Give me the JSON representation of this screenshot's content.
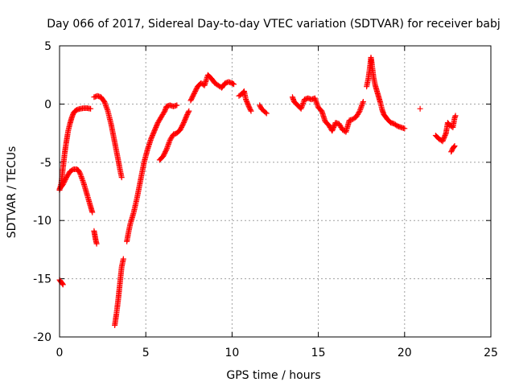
{
  "chart_data": {
    "type": "scatter",
    "title": "Day 066 of 2017, Sidereal Day-to-day VTEC variation (SDTVAR) for receiver babj",
    "xlabel": "GPS time / hours",
    "ylabel": "SDTVAR / TECUs",
    "xlim": [
      0,
      25
    ],
    "ylim": [
      -20,
      5
    ],
    "xticks": [
      0,
      5,
      10,
      15,
      20,
      25
    ],
    "yticks": [
      -20,
      -15,
      -10,
      -5,
      0,
      5
    ],
    "xtick_labels": [
      "0",
      "5",
      "10",
      "15",
      "20",
      "25"
    ],
    "ytick_labels": [
      "-20",
      "-15",
      "-10",
      "-5",
      "0",
      "5"
    ],
    "grid": true,
    "marker": "+",
    "color": "#ff0000",
    "series": [
      {
        "name": "SDTVAR",
        "segments": [
          [
            [
              0.0,
              -7.4
            ],
            [
              0.1,
              -6.8
            ],
            [
              0.2,
              -5.5
            ],
            [
              0.3,
              -4.2
            ],
            [
              0.4,
              -3.2
            ],
            [
              0.5,
              -2.3
            ],
            [
              0.6,
              -1.7
            ],
            [
              0.7,
              -1.2
            ],
            [
              0.8,
              -0.8
            ],
            [
              0.9,
              -0.6
            ],
            [
              1.0,
              -0.5
            ],
            [
              1.2,
              -0.4
            ],
            [
              1.4,
              -0.35
            ],
            [
              1.6,
              -0.35
            ],
            [
              1.8,
              -0.4
            ]
          ],
          [
            [
              0.0,
              -7.3
            ],
            [
              0.2,
              -6.9
            ],
            [
              0.4,
              -6.3
            ],
            [
              0.6,
              -5.8
            ],
            [
              0.8,
              -5.6
            ],
            [
              1.0,
              -5.6
            ],
            [
              1.1,
              -5.7
            ],
            [
              1.2,
              -6.0
            ],
            [
              1.4,
              -6.8
            ],
            [
              1.6,
              -7.8
            ],
            [
              1.8,
              -8.8
            ],
            [
              1.9,
              -9.3
            ]
          ],
          [
            [
              0.0,
              -15.1
            ],
            [
              0.1,
              -15.3
            ],
            [
              0.2,
              -15.5
            ]
          ],
          [
            [
              2.0,
              -10.9
            ],
            [
              2.05,
              -11.3
            ],
            [
              2.1,
              -11.7
            ],
            [
              2.15,
              -12.0
            ]
          ],
          [
            [
              2.0,
              0.6
            ],
            [
              2.2,
              0.7
            ],
            [
              2.4,
              0.6
            ],
            [
              2.6,
              0.2
            ],
            [
              2.8,
              -0.6
            ],
            [
              3.0,
              -1.8
            ],
            [
              3.2,
              -3.3
            ],
            [
              3.4,
              -4.8
            ],
            [
              3.5,
              -5.6
            ],
            [
              3.6,
              -6.3
            ]
          ],
          [
            [
              3.2,
              -19.0
            ],
            [
              3.3,
              -18.0
            ],
            [
              3.4,
              -16.8
            ],
            [
              3.5,
              -15.4
            ],
            [
              3.6,
              -14.0
            ],
            [
              3.7,
              -13.3
            ]
          ],
          [
            [
              3.9,
              -11.8
            ],
            [
              4.0,
              -11.0
            ],
            [
              4.1,
              -10.3
            ],
            [
              4.3,
              -9.3
            ],
            [
              4.5,
              -8.0
            ],
            [
              4.7,
              -6.5
            ],
            [
              4.9,
              -5.0
            ],
            [
              5.1,
              -3.9
            ],
            [
              5.3,
              -3.0
            ],
            [
              5.5,
              -2.3
            ],
            [
              5.7,
              -1.6
            ],
            [
              5.9,
              -1.1
            ],
            [
              6.1,
              -0.6
            ],
            [
              6.2,
              -0.2
            ],
            [
              6.4,
              -0.1
            ],
            [
              6.6,
              -0.2
            ],
            [
              6.8,
              -0.1
            ]
          ],
          [
            [
              5.8,
              -4.8
            ],
            [
              6.0,
              -4.5
            ],
            [
              6.2,
              -3.9
            ],
            [
              6.4,
              -3.1
            ],
            [
              6.6,
              -2.6
            ],
            [
              6.8,
              -2.5
            ],
            [
              7.0,
              -2.2
            ],
            [
              7.2,
              -1.6
            ],
            [
              7.4,
              -0.9
            ],
            [
              7.5,
              -0.6
            ]
          ],
          [
            [
              7.6,
              0.3
            ],
            [
              7.8,
              0.9
            ],
            [
              8.0,
              1.5
            ],
            [
              8.2,
              1.8
            ],
            [
              8.4,
              1.6
            ],
            [
              8.6,
              2.5
            ],
            [
              8.8,
              2.2
            ],
            [
              9.0,
              1.8
            ],
            [
              9.2,
              1.6
            ],
            [
              9.4,
              1.4
            ],
            [
              9.6,
              1.8
            ],
            [
              9.8,
              1.9
            ],
            [
              10.0,
              1.8
            ],
            [
              10.1,
              1.7
            ]
          ],
          [
            [
              10.4,
              0.7
            ],
            [
              10.6,
              0.9
            ],
            [
              10.7,
              1.1
            ],
            [
              10.8,
              0.4
            ],
            [
              11.0,
              -0.3
            ],
            [
              11.1,
              -0.6
            ]
          ],
          [
            [
              11.6,
              -0.1
            ],
            [
              11.7,
              -0.4
            ],
            [
              12.0,
              -0.8
            ]
          ],
          [
            [
              13.5,
              0.6
            ],
            [
              13.6,
              0.2
            ],
            [
              13.8,
              -0.1
            ],
            [
              14.0,
              -0.4
            ],
            [
              14.2,
              0.4
            ],
            [
              14.4,
              0.5
            ],
            [
              14.6,
              0.4
            ],
            [
              14.8,
              0.5
            ],
            [
              15.0,
              -0.3
            ],
            [
              15.2,
              -0.6
            ],
            [
              15.4,
              -1.5
            ],
            [
              15.6,
              -1.8
            ],
            [
              15.8,
              -2.3
            ],
            [
              16.0,
              -1.6
            ],
            [
              16.2,
              -1.7
            ],
            [
              16.4,
              -2.2
            ],
            [
              16.6,
              -2.4
            ],
            [
              16.8,
              -1.4
            ],
            [
              17.0,
              -1.3
            ],
            [
              17.2,
              -1.1
            ],
            [
              17.4,
              -0.6
            ],
            [
              17.6,
              0.2
            ]
          ],
          [
            [
              17.8,
              1.5
            ],
            [
              17.9,
              2.2
            ],
            [
              18.0,
              3.3
            ],
            [
              18.05,
              4.0
            ],
            [
              18.1,
              3.5
            ],
            [
              18.2,
              2.3
            ],
            [
              18.3,
              1.6
            ],
            [
              18.4,
              1.1
            ],
            [
              18.5,
              0.6
            ],
            [
              18.6,
              0.1
            ],
            [
              18.7,
              -0.5
            ],
            [
              18.8,
              -0.9
            ],
            [
              19.0,
              -1.3
            ],
            [
              19.2,
              -1.6
            ],
            [
              19.4,
              -1.7
            ],
            [
              19.6,
              -1.9
            ],
            [
              19.8,
              -2.0
            ],
            [
              20.0,
              -2.1
            ]
          ],
          [
            [
              20.9,
              -0.4
            ]
          ],
          [
            [
              21.8,
              -2.7
            ],
            [
              22.0,
              -3.0
            ],
            [
              22.2,
              -3.2
            ],
            [
              22.4,
              -2.5
            ],
            [
              22.5,
              -1.6
            ],
            [
              22.6,
              -1.8
            ],
            [
              22.8,
              -2.0
            ],
            [
              22.9,
              -1.2
            ],
            [
              22.95,
              -1.0
            ]
          ],
          [
            [
              22.7,
              -4.1
            ],
            [
              22.8,
              -3.8
            ],
            [
              22.9,
              -3.6
            ]
          ]
        ]
      }
    ]
  }
}
